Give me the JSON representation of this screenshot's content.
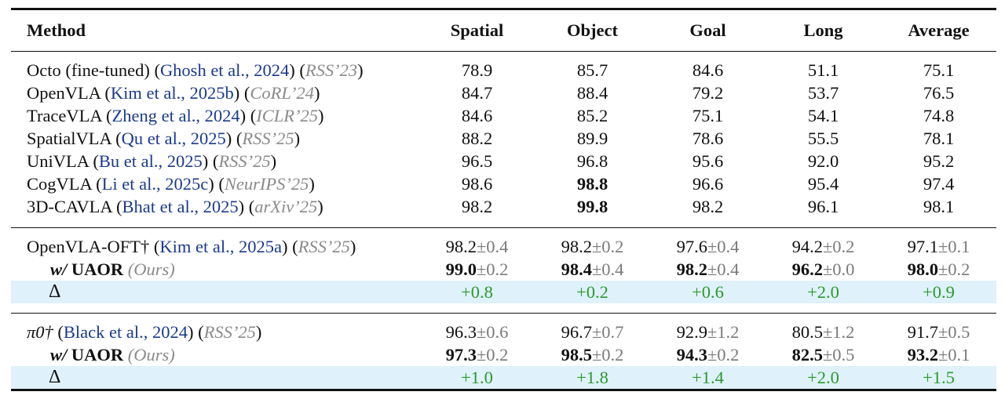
{
  "header": {
    "method": "Method",
    "spatial": "Spatial",
    "object": "Object",
    "goal": "Goal",
    "long": "Long",
    "average": "Average"
  },
  "baselines": [
    {
      "name": "Octo (fine-tuned)",
      "cite": "Ghosh et al., 2024",
      "venue": "RSS’23",
      "spatial": "78.9",
      "object": "85.7",
      "goal": "84.6",
      "long": "51.1",
      "average": "75.1"
    },
    {
      "name": "OpenVLA",
      "cite": "Kim et al., 2025b",
      "venue": "CoRL’24",
      "spatial": "84.7",
      "object": "88.4",
      "goal": "79.2",
      "long": "53.7",
      "average": "76.5"
    },
    {
      "name": "TraceVLA",
      "cite": "Zheng et al., 2024",
      "venue": "ICLR’25",
      "spatial": "84.6",
      "object": "85.2",
      "goal": "75.1",
      "long": "54.1",
      "average": "74.8"
    },
    {
      "name": "SpatialVLA",
      "cite": "Qu et al., 2025",
      "venue": "RSS’25",
      "spatial": "88.2",
      "object": "89.9",
      "goal": "78.6",
      "long": "55.5",
      "average": "78.1"
    },
    {
      "name": "UniVLA",
      "cite": "Bu et al., 2025",
      "venue": "RSS’25",
      "spatial": "96.5",
      "object": "96.8",
      "goal": "95.6",
      "long": "92.0",
      "average": "95.2"
    },
    {
      "name": "CogVLA",
      "cite": "Li et al., 2025c",
      "venue": "NeurIPS’25",
      "spatial": "98.6",
      "object": "98.8",
      "goal": "96.6",
      "long": "95.4",
      "average": "97.4"
    },
    {
      "name": "3D-CAVLA",
      "cite": "Bhat et al., 2025",
      "venue": "arXiv’25",
      "spatial": "98.2",
      "object": "99.8",
      "goal": "98.2",
      "long": "96.1",
      "average": "98.1"
    }
  ],
  "groups": [
    {
      "base": {
        "name": "OpenVLA-OFT†",
        "cite": "Kim et al., 2025a",
        "venue": "RSS’25",
        "vals": [
          [
            "98.2",
            "±0.4"
          ],
          [
            "98.2",
            "±0.2"
          ],
          [
            "97.6",
            "±0.4"
          ],
          [
            "94.2",
            "±0.2"
          ],
          [
            "97.1",
            "±0.1"
          ]
        ]
      },
      "ours": {
        "prefix": "w/",
        "name": "UAOR",
        "tag": "Ours",
        "vals": [
          [
            "99.0",
            "±0.2"
          ],
          [
            "98.4",
            "±0.4"
          ],
          [
            "98.2",
            "±0.4"
          ],
          [
            "96.2",
            "±0.0"
          ],
          [
            "98.0",
            "±0.2"
          ]
        ]
      },
      "delta": {
        "symbol": "Δ",
        "vals": [
          "+0.8",
          "+0.2",
          "+0.6",
          "+2.0",
          "+0.9"
        ]
      }
    },
    {
      "base": {
        "name": "π0†",
        "cite": "Black et al., 2024",
        "venue": "RSS’25",
        "vals": [
          [
            "96.3",
            "±0.6"
          ],
          [
            "96.7",
            "±0.7"
          ],
          [
            "92.9",
            "±1.2"
          ],
          [
            "80.5",
            "±1.2"
          ],
          [
            "91.7",
            "±0.5"
          ]
        ]
      },
      "ours": {
        "prefix": "w/",
        "name": "UAOR",
        "tag": "Ours",
        "vals": [
          [
            "97.3",
            "±0.2"
          ],
          [
            "98.5",
            "±0.2"
          ],
          [
            "94.3",
            "±0.2"
          ],
          [
            "82.5",
            "±0.5"
          ],
          [
            "93.2",
            "±0.1"
          ]
        ]
      },
      "delta": {
        "symbol": "Δ",
        "vals": [
          "+1.0",
          "+1.8",
          "+1.4",
          "+2.0",
          "+1.5"
        ]
      }
    }
  ],
  "colors": {
    "cite": "#1a3a8c",
    "venue": "#8a8a8a",
    "delta_bg": "#dff1fa",
    "gain": "#2a9a2a"
  }
}
